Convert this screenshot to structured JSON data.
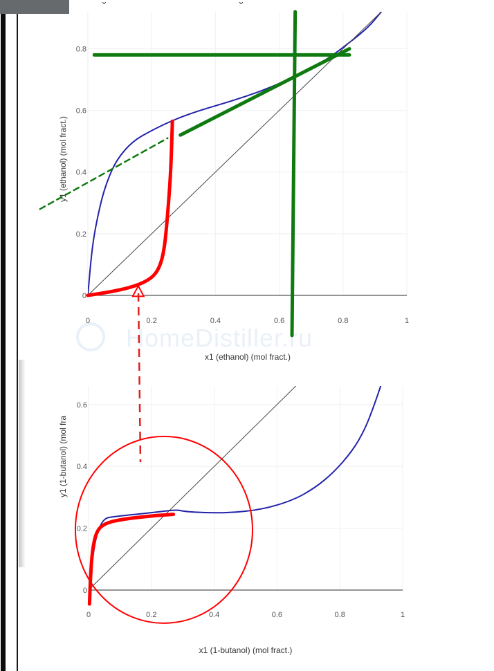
{
  "watermark": "HomeDistiller.ru",
  "chart_data": [
    {
      "type": "line",
      "xlabel": "x1 (ethanol) (mol fract.)",
      "ylabel": "y1 (ethanol) (mol fract.)",
      "xlim": [
        0,
        1
      ],
      "ylim": [
        0,
        0.92
      ],
      "x_ticks": [
        "0",
        "0.2",
        "0.4",
        "0.6",
        "0.8",
        "1"
      ],
      "y_ticks": [
        "0",
        "0.2",
        "0.4",
        "0.6",
        "0.8"
      ],
      "grid": true,
      "series": [
        {
          "color": "#2222aa",
          "x": [
            0,
            0.01,
            0.02,
            0.04,
            0.06,
            0.09,
            0.14,
            0.2,
            0.27,
            0.35,
            0.45,
            0.55,
            0.65,
            0.75,
            0.82,
            0.88,
            0.92
          ],
          "y": [
            0,
            0.12,
            0.2,
            0.3,
            0.37,
            0.44,
            0.5,
            0.535,
            0.57,
            0.6,
            0.63,
            0.665,
            0.71,
            0.765,
            0.82,
            0.87,
            0.92
          ]
        },
        {
          "color": "#444444",
          "x": [
            0,
            0.97
          ],
          "y": [
            0,
            0.97
          ]
        }
      ],
      "annotations": [
        {
          "color": "#ff0000",
          "x": [
            0,
            0.08,
            0.15,
            0.2,
            0.225,
            0.24,
            0.25,
            0.26,
            0.265
          ],
          "y": [
            0,
            0.013,
            0.03,
            0.055,
            0.09,
            0.15,
            0.26,
            0.4,
            0.565
          ]
        },
        {
          "color": "#ff0000",
          "marker": "triangle",
          "x": 0.158,
          "y": 0.015
        },
        {
          "color": "#0f7a0f",
          "x": [
            0.29,
            0.82
          ],
          "y": [
            0.52,
            0.8
          ]
        },
        {
          "color": "#0f7a0f",
          "x": [
            0.02,
            0.82
          ],
          "y": [
            0.78,
            0.78
          ]
        },
        {
          "color": "#0f7a0f",
          "x": [
            0.64,
            0.65
          ],
          "y": [
            -0.13,
            0.92
          ]
        },
        {
          "color": "#0f7a0f",
          "dashed": true,
          "x": [
            -0.15,
            0.25
          ],
          "y": [
            0.28,
            0.51
          ]
        }
      ]
    },
    {
      "type": "line",
      "xlabel": "x1 (1-butanol) (mol fract.)",
      "ylabel": "y1 (1-butanol) (mol fra",
      "xlim": [
        0,
        1
      ],
      "ylim": [
        0,
        0.66
      ],
      "x_ticks": [
        "0",
        "0.2",
        "0.4",
        "0.6",
        "0.8",
        "1"
      ],
      "y_ticks": [
        "0",
        "0.2",
        "0.4",
        "0.6"
      ],
      "grid": true,
      "series": [
        {
          "color": "#2222aa",
          "x": [
            0,
            0.03,
            0.1,
            0.2,
            0.28,
            0.3,
            0.34,
            0.38,
            0.45,
            0.55,
            0.65,
            0.72,
            0.78,
            0.84,
            0.88,
            0.91,
            0.93
          ],
          "y": [
            0,
            0.23,
            0.24,
            0.25,
            0.26,
            0.255,
            0.252,
            0.25,
            0.25,
            0.26,
            0.29,
            0.33,
            0.38,
            0.45,
            0.52,
            0.6,
            0.66
          ]
        },
        {
          "color": "#444444",
          "x": [
            0,
            0.67
          ],
          "y": [
            0,
            0.67
          ]
        }
      ],
      "annotations": [
        {
          "color": "#ff0000",
          "x": [
            0.003,
            0.006,
            0.012,
            0.025,
            0.05,
            0.1,
            0.2,
            0.27
          ],
          "y": [
            -0.045,
            0.04,
            0.13,
            0.19,
            0.215,
            0.228,
            0.24,
            0.245
          ]
        },
        {
          "color": "#ff0000",
          "marker": "circle",
          "x": 0.24,
          "y": 0.195
        }
      ]
    }
  ]
}
